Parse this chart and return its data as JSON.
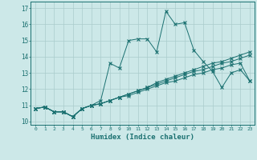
{
  "title": "",
  "xlabel": "Humidex (Indice chaleur)",
  "ylabel": "",
  "bg_color": "#cce8e8",
  "grid_color": "#aacccc",
  "line_color": "#1a7070",
  "xlim": [
    -0.5,
    23.5
  ],
  "ylim": [
    9.8,
    17.4
  ],
  "xticks": [
    0,
    1,
    2,
    3,
    4,
    5,
    6,
    7,
    8,
    9,
    10,
    11,
    12,
    13,
    14,
    15,
    16,
    17,
    18,
    19,
    20,
    21,
    22,
    23
  ],
  "yticks": [
    10,
    11,
    12,
    13,
    14,
    15,
    16,
    17
  ],
  "series": [
    [
      10.8,
      10.9,
      10.6,
      10.6,
      10.3,
      10.8,
      11.0,
      11.3,
      13.6,
      13.3,
      15.0,
      15.1,
      15.1,
      14.3,
      16.8,
      16.0,
      16.1,
      14.4,
      13.7,
      13.1,
      12.1,
      13.0,
      13.2,
      12.5
    ],
    [
      10.8,
      10.9,
      10.6,
      10.6,
      10.3,
      10.8,
      11.0,
      11.1,
      11.3,
      11.5,
      11.7,
      11.9,
      12.1,
      12.4,
      12.6,
      12.8,
      13.0,
      13.2,
      13.4,
      13.6,
      13.7,
      13.9,
      14.1,
      14.3
    ],
    [
      10.8,
      10.9,
      10.6,
      10.6,
      10.3,
      10.8,
      11.0,
      11.1,
      11.3,
      11.5,
      11.7,
      11.9,
      12.1,
      12.3,
      12.5,
      12.7,
      12.9,
      13.1,
      13.2,
      13.4,
      13.6,
      13.7,
      13.9,
      14.1
    ],
    [
      10.8,
      10.9,
      10.6,
      10.6,
      10.3,
      10.8,
      11.0,
      11.1,
      11.3,
      11.5,
      11.6,
      11.8,
      12.0,
      12.2,
      12.4,
      12.5,
      12.7,
      12.9,
      13.0,
      13.2,
      13.3,
      13.5,
      13.6,
      12.5
    ]
  ]
}
